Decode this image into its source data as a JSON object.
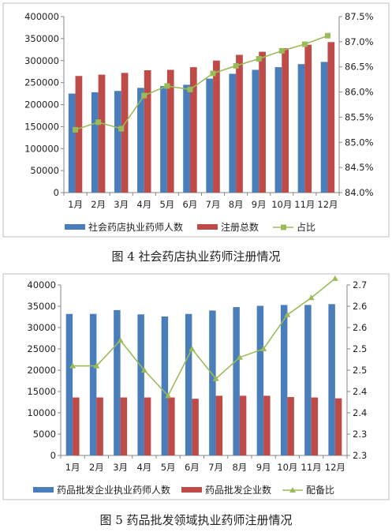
{
  "chart_data": [
    {
      "type": "bar",
      "caption": "图 4 社会药店执业药师注册情况",
      "categories": [
        "1月",
        "2月",
        "3月",
        "4月",
        "5月",
        "6月",
        "7月",
        "8月",
        "9月",
        "10月",
        "11月",
        "12月"
      ],
      "series": [
        {
          "name": "社会药店执业药师人数",
          "type": "bar",
          "axis": "left",
          "color": "#4a7ebb",
          "values": [
            225000,
            228000,
            231000,
            238000,
            242000,
            245000,
            259000,
            270000,
            279000,
            285000,
            292000,
            297000
          ]
        },
        {
          "name": "注册总数",
          "type": "bar",
          "axis": "left",
          "color": "#be4b48",
          "values": [
            265000,
            268000,
            272000,
            278000,
            279000,
            285000,
            300000,
            313000,
            320000,
            328000,
            336000,
            342000
          ]
        },
        {
          "name": "占比",
          "type": "line",
          "axis": "right",
          "color": "#9bbb59",
          "marker": "square",
          "values": [
            85.25,
            85.4,
            85.27,
            85.93,
            86.12,
            86.05,
            86.37,
            86.52,
            86.66,
            86.82,
            86.95,
            87.12
          ]
        }
      ],
      "left_axis": {
        "min": 0,
        "max": 400000,
        "step": 50000,
        "ticks": [
          "0",
          "50000",
          "100000",
          "150000",
          "200000",
          "250000",
          "300000",
          "350000",
          "400000"
        ]
      },
      "right_axis": {
        "min": 84.0,
        "max": 87.5,
        "step": 0.5,
        "ticks": [
          "84.0%",
          "84.5%",
          "85.0%",
          "85.5%",
          "86.0%",
          "86.5%",
          "87.0%",
          "87.5%"
        ]
      },
      "legend_position": "bottom",
      "grid": false
    },
    {
      "type": "bar",
      "caption": "图 5 药品批发领域执业药师注册情况",
      "categories": [
        "1月",
        "2月",
        "3月",
        "4月",
        "5月",
        "6月",
        "7月",
        "8月",
        "9月",
        "10月",
        "11月",
        "12月"
      ],
      "series": [
        {
          "name": "药品批发企业执业药师人数",
          "type": "bar",
          "axis": "left",
          "color": "#4a7ebb",
          "values": [
            33200,
            33200,
            34100,
            33100,
            32600,
            33200,
            34000,
            34800,
            35100,
            35300,
            35300,
            35500
          ]
        },
        {
          "name": "药品批发企业数",
          "type": "bar",
          "axis": "left",
          "color": "#be4b48",
          "values": [
            13600,
            13600,
            13600,
            13600,
            13600,
            13300,
            14000,
            14000,
            14000,
            13700,
            13600,
            13400
          ]
        },
        {
          "name": "配备比",
          "type": "line",
          "axis": "right",
          "color": "#9bbb59",
          "marker": "triangle",
          "values": [
            2.51,
            2.51,
            2.57,
            2.5,
            2.44,
            2.55,
            2.48,
            2.53,
            2.55,
            2.63,
            2.67,
            2.715
          ]
        }
      ],
      "left_axis": {
        "min": 0,
        "max": 40000,
        "step": 5000,
        "ticks": [
          "0",
          "5000",
          "10000",
          "15000",
          "20000",
          "25000",
          "30000",
          "35000",
          "40000"
        ]
      },
      "right_axis": {
        "min": 2.3,
        "max": 2.7,
        "step": 0.05,
        "ticks": [
          "2.3",
          "2.3",
          "2.4",
          "2.4",
          "2.5",
          "2.5",
          "2.6",
          "2.6",
          "2.7",
          "2.7"
        ]
      },
      "legend_position": "bottom",
      "grid": false
    }
  ]
}
